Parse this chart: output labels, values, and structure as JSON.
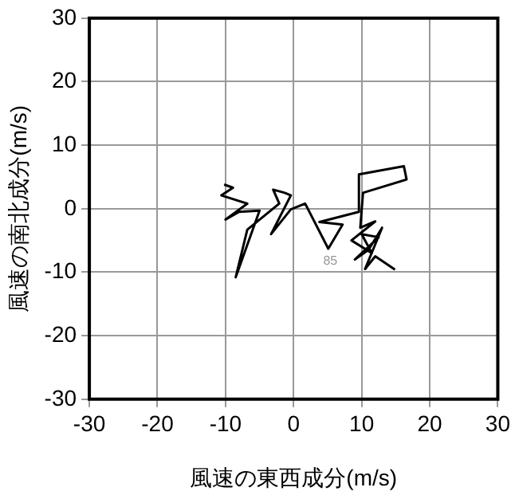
{
  "chart_data": {
    "type": "line",
    "xlabel": "風速の東西成分(m/s)",
    "ylabel": "風速の南北成分(m/s)",
    "xlim": [
      -30,
      30
    ],
    "ylim": [
      -30,
      30
    ],
    "xticks": [
      -30,
      -20,
      -10,
      0,
      10,
      20,
      30
    ],
    "yticks": [
      -30,
      -20,
      -10,
      0,
      10,
      20,
      30
    ],
    "grid": true,
    "marker": "none",
    "series": [
      {
        "color": "#000000",
        "x": [
          -10.2,
          -8.9,
          -10.6,
          -6.8,
          -10,
          -8,
          -5,
          -8.5,
          -6.8,
          -2.1,
          -3,
          -1.3,
          -0.4,
          -3.3,
          -0.4,
          1.7,
          5.1,
          7.2,
          3.8,
          9.6,
          9.6,
          16.2,
          16.6,
          10.2,
          9.8,
          12,
          8.5,
          11.5,
          10,
          12.5,
          9,
          11,
          13,
          10.5,
          12,
          14.9
        ],
        "values": [
          3.8,
          3.3,
          2.1,
          0.8,
          -1.7,
          -0.5,
          -0.3,
          -10.8,
          -3.3,
          0.8,
          3,
          2.5,
          2.1,
          -4,
          -0.1,
          0.8,
          -6.3,
          -2.5,
          -2.1,
          -0.5,
          5.4,
          6.7,
          4.6,
          2.5,
          -3,
          -2,
          -5,
          -7,
          -4,
          -4.5,
          -8,
          -6.5,
          -3,
          -9.5,
          -7.5,
          -9.6
        ]
      }
    ],
    "annotations": [
      "85"
    ]
  }
}
